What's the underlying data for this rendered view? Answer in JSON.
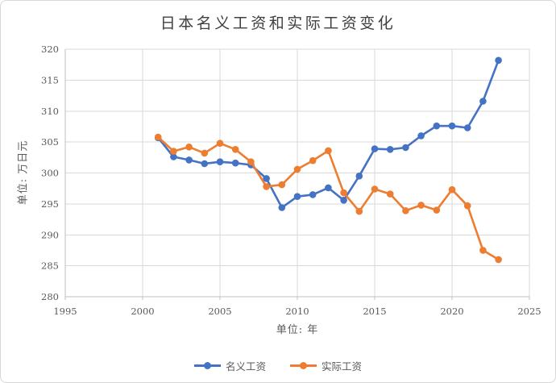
{
  "theme": {
    "background": "#ffffff",
    "frame_border": "#d8d8d8",
    "grid_color": "#d9d9d9",
    "axis_color": "#bfbfbf",
    "tick_text_color": "#595959",
    "title_text_color": "#404040"
  },
  "chart_data": {
    "type": "line",
    "title": "日本名义工资和实际工资变化",
    "xlabel": "单位: 年",
    "ylabel": "单位: 万日元",
    "xlim": [
      1995,
      2025
    ],
    "ylim": [
      280,
      320
    ],
    "xticks": [
      1995,
      2000,
      2005,
      2010,
      2015,
      2020,
      2025
    ],
    "yticks": [
      280,
      285,
      290,
      295,
      300,
      305,
      310,
      315,
      320
    ],
    "grid": true,
    "legend_position": "bottom",
    "x": [
      2001,
      2002,
      2003,
      2004,
      2005,
      2006,
      2007,
      2008,
      2009,
      2010,
      2011,
      2012,
      2013,
      2014,
      2015,
      2016,
      2017,
      2018,
      2019,
      2020,
      2021,
      2022,
      2023
    ],
    "series": [
      {
        "name": "名义工资",
        "color": "#4472C4",
        "values": [
          305.7,
          302.6,
          302.1,
          301.5,
          301.8,
          301.6,
          301.3,
          299.1,
          294.4,
          296.2,
          296.5,
          297.6,
          295.6,
          299.5,
          303.9,
          303.8,
          304.1,
          306.0,
          307.6,
          307.6,
          307.3,
          311.6,
          318.2
        ]
      },
      {
        "name": "实际工资",
        "color": "#ED7D31",
        "values": [
          305.8,
          303.5,
          304.2,
          303.2,
          304.8,
          303.8,
          301.8,
          297.8,
          298.1,
          300.6,
          302.0,
          303.6,
          296.8,
          293.8,
          297.4,
          296.6,
          293.9,
          294.8,
          294.0,
          297.3,
          294.7,
          287.5,
          286.0
        ]
      }
    ]
  }
}
